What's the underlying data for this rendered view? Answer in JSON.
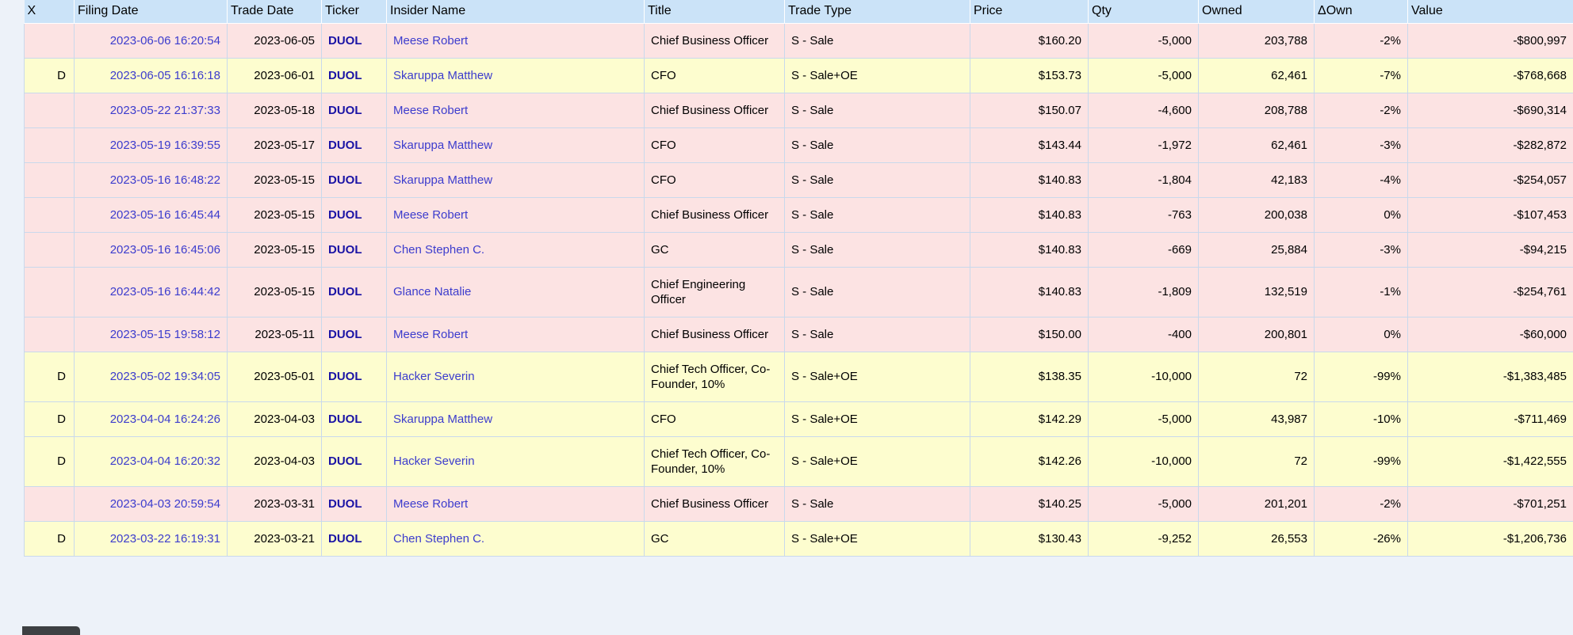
{
  "theme": {
    "page_bg": "#edf2f9",
    "header_bg": "#cbe3f8",
    "row_sale_bg": "#fce3e3",
    "row_sale_oe_bg": "#fdfdcf",
    "grid_border": "#c9d9ec",
    "link_color": "#3c3ccd",
    "ticker_color": "#1a13a5",
    "text_color": "#000000",
    "status_bubble_bg": "#3d4043"
  },
  "table": {
    "columns": [
      "X",
      "Filing Date",
      "Trade Date",
      "Ticker",
      "Insider Name",
      "Title",
      "Trade Type",
      "Price",
      "Qty",
      "Owned",
      "ΔOwn",
      "Value"
    ],
    "rows": [
      {
        "variant": "sale",
        "x": "",
        "filing_date": "2023-06-06 16:20:54",
        "trade_date": "2023-06-05",
        "ticker": "DUOL",
        "insider": "Meese Robert",
        "title": "Chief Business Officer",
        "trade_type": "S - Sale",
        "price": "$160.20",
        "qty": "-5,000",
        "owned": "203,788",
        "delta_own": "-2%",
        "value": "-$800,997"
      },
      {
        "variant": "sale_oe",
        "x": "D",
        "filing_date": "2023-06-05 16:16:18",
        "trade_date": "2023-06-01",
        "ticker": "DUOL",
        "insider": "Skaruppa Matthew",
        "title": "CFO",
        "trade_type": "S - Sale+OE",
        "price": "$153.73",
        "qty": "-5,000",
        "owned": "62,461",
        "delta_own": "-7%",
        "value": "-$768,668"
      },
      {
        "variant": "sale",
        "x": "",
        "filing_date": "2023-05-22 21:37:33",
        "trade_date": "2023-05-18",
        "ticker": "DUOL",
        "insider": "Meese Robert",
        "title": "Chief Business Officer",
        "trade_type": "S - Sale",
        "price": "$150.07",
        "qty": "-4,600",
        "owned": "208,788",
        "delta_own": "-2%",
        "value": "-$690,314"
      },
      {
        "variant": "sale",
        "x": "",
        "filing_date": "2023-05-19 16:39:55",
        "trade_date": "2023-05-17",
        "ticker": "DUOL",
        "insider": "Skaruppa Matthew",
        "title": "CFO",
        "trade_type": "S - Sale",
        "price": "$143.44",
        "qty": "-1,972",
        "owned": "62,461",
        "delta_own": "-3%",
        "value": "-$282,872"
      },
      {
        "variant": "sale",
        "x": "",
        "filing_date": "2023-05-16 16:48:22",
        "trade_date": "2023-05-15",
        "ticker": "DUOL",
        "insider": "Skaruppa Matthew",
        "title": "CFO",
        "trade_type": "S - Sale",
        "price": "$140.83",
        "qty": "-1,804",
        "owned": "42,183",
        "delta_own": "-4%",
        "value": "-$254,057"
      },
      {
        "variant": "sale",
        "x": "",
        "filing_date": "2023-05-16 16:45:44",
        "trade_date": "2023-05-15",
        "ticker": "DUOL",
        "insider": "Meese Robert",
        "title": "Chief Business Officer",
        "trade_type": "S - Sale",
        "price": "$140.83",
        "qty": "-763",
        "owned": "200,038",
        "delta_own": "0%",
        "value": "-$107,453"
      },
      {
        "variant": "sale",
        "x": "",
        "filing_date": "2023-05-16 16:45:06",
        "trade_date": "2023-05-15",
        "ticker": "DUOL",
        "insider": "Chen Stephen C.",
        "title": "GC",
        "trade_type": "S - Sale",
        "price": "$140.83",
        "qty": "-669",
        "owned": "25,884",
        "delta_own": "-3%",
        "value": "-$94,215"
      },
      {
        "variant": "sale",
        "x": "",
        "filing_date": "2023-05-16 16:44:42",
        "trade_date": "2023-05-15",
        "ticker": "DUOL",
        "insider": "Glance Natalie",
        "title": "Chief Engineering Officer",
        "trade_type": "S - Sale",
        "price": "$140.83",
        "qty": "-1,809",
        "owned": "132,519",
        "delta_own": "-1%",
        "value": "-$254,761"
      },
      {
        "variant": "sale",
        "x": "",
        "filing_date": "2023-05-15 19:58:12",
        "trade_date": "2023-05-11",
        "ticker": "DUOL",
        "insider": "Meese Robert",
        "title": "Chief Business Officer",
        "trade_type": "S - Sale",
        "price": "$150.00",
        "qty": "-400",
        "owned": "200,801",
        "delta_own": "0%",
        "value": "-$60,000"
      },
      {
        "variant": "sale_oe",
        "x": "D",
        "filing_date": "2023-05-02 19:34:05",
        "trade_date": "2023-05-01",
        "ticker": "DUOL",
        "insider": "Hacker Severin",
        "title": "Chief Tech Officer, Co-Founder, 10%",
        "trade_type": "S - Sale+OE",
        "price": "$138.35",
        "qty": "-10,000",
        "owned": "72",
        "delta_own": "-99%",
        "value": "-$1,383,485"
      },
      {
        "variant": "sale_oe",
        "x": "D",
        "filing_date": "2023-04-04 16:24:26",
        "trade_date": "2023-04-03",
        "ticker": "DUOL",
        "insider": "Skaruppa Matthew",
        "title": "CFO",
        "trade_type": "S - Sale+OE",
        "price": "$142.29",
        "qty": "-5,000",
        "owned": "43,987",
        "delta_own": "-10%",
        "value": "-$711,469"
      },
      {
        "variant": "sale_oe",
        "x": "D",
        "filing_date": "2023-04-04 16:20:32",
        "trade_date": "2023-04-03",
        "ticker": "DUOL",
        "insider": "Hacker Severin",
        "title": "Chief Tech Officer, Co-Founder, 10%",
        "trade_type": "S - Sale+OE",
        "price": "$142.26",
        "qty": "-10,000",
        "owned": "72",
        "delta_own": "-99%",
        "value": "-$1,422,555"
      },
      {
        "variant": "sale",
        "x": "",
        "filing_date": "2023-04-03 20:59:54",
        "trade_date": "2023-03-31",
        "ticker": "DUOL",
        "insider": "Meese Robert",
        "title": "Chief Business Officer",
        "trade_type": "S - Sale",
        "price": "$140.25",
        "qty": "-5,000",
        "owned": "201,201",
        "delta_own": "-2%",
        "value": "-$701,251"
      },
      {
        "variant": "sale_oe",
        "x": "D",
        "filing_date": "2023-03-22 16:19:31",
        "trade_date": "2023-03-21",
        "ticker": "DUOL",
        "insider": "Chen Stephen C.",
        "title": "GC",
        "trade_type": "S - Sale+OE",
        "price": "$130.43",
        "qty": "-9,252",
        "owned": "26,553",
        "delta_own": "-26%",
        "value": "-$1,206,736"
      }
    ]
  }
}
